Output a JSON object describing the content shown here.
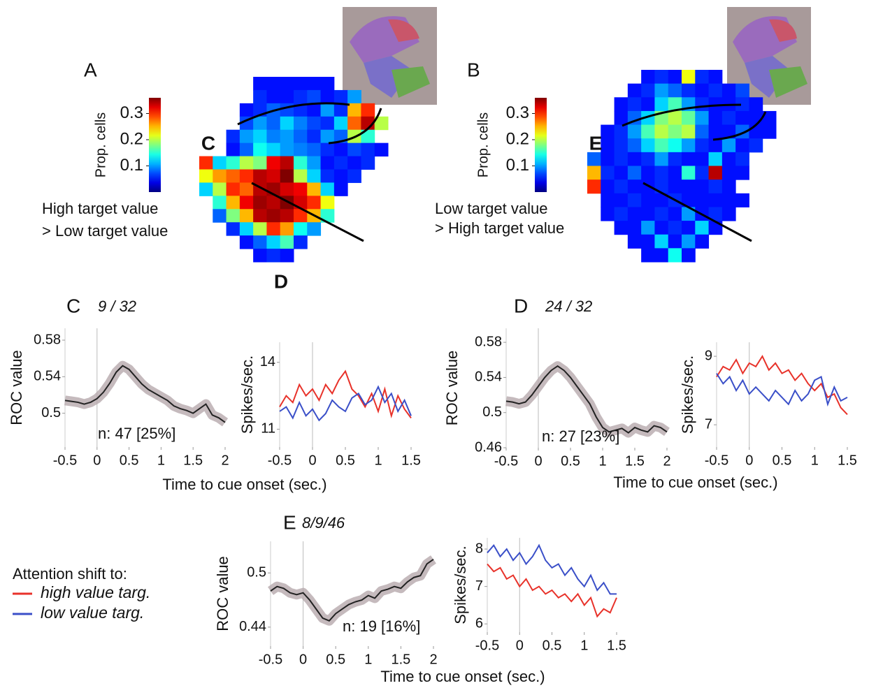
{
  "chart_data": [
    {
      "type": "heatmap",
      "panel": "A",
      "colorbar_label": "Prop. cells",
      "clim": [
        0,
        0.36
      ],
      "cticks": [
        0.1,
        0.2,
        0.3
      ],
      "annotations": [
        "High target value",
        "> Low target value"
      ],
      "markers": [
        "C",
        "D"
      ],
      "values": [
        [
          null,
          null,
          null,
          null,
          0.05,
          0.05,
          0.05,
          0.05,
          0.05,
          0.05,
          null,
          null,
          null,
          null
        ],
        [
          null,
          null,
          null,
          null,
          0.06,
          0.05,
          0.05,
          0.06,
          0.07,
          0.05,
          0.06,
          0.1,
          null,
          null
        ],
        [
          null,
          null,
          null,
          0.05,
          0.06,
          0.08,
          0.07,
          0.06,
          0.05,
          0.1,
          0.06,
          0.25,
          0.3,
          null
        ],
        [
          null,
          null,
          null,
          0.07,
          0.1,
          0.08,
          0.12,
          0.09,
          0.07,
          0.06,
          0.12,
          0.28,
          0.34,
          0.2
        ],
        [
          null,
          null,
          0.06,
          0.1,
          0.12,
          0.09,
          0.1,
          0.08,
          0.06,
          0.1,
          0.08,
          0.2,
          0.15,
          null
        ],
        [
          null,
          null,
          0.05,
          0.08,
          0.14,
          0.12,
          0.1,
          0.09,
          0.08,
          0.06,
          0.05,
          0.07,
          0.06,
          0.05
        ],
        [
          0.3,
          0.12,
          0.15,
          0.2,
          0.18,
          0.32,
          0.34,
          0.15,
          0.1,
          0.05,
          0.06,
          0.05,
          0.06,
          null
        ],
        [
          0.22,
          0.26,
          0.28,
          0.3,
          0.34,
          0.33,
          0.36,
          0.2,
          0.12,
          0.06,
          0.05,
          0.06,
          null,
          null
        ],
        [
          0.12,
          0.2,
          0.3,
          0.28,
          0.34,
          0.35,
          0.33,
          0.32,
          0.25,
          0.12,
          0.05,
          null,
          null,
          null
        ],
        [
          null,
          0.15,
          0.25,
          0.32,
          0.35,
          0.34,
          0.36,
          0.33,
          0.3,
          0.22,
          null,
          null,
          null,
          null
        ],
        [
          null,
          0.08,
          0.18,
          0.25,
          0.34,
          0.35,
          0.34,
          0.3,
          0.25,
          0.15,
          null,
          null,
          null,
          null
        ],
        [
          null,
          null,
          0.06,
          0.12,
          0.2,
          0.3,
          0.26,
          0.14,
          0.1,
          null,
          null,
          null,
          null,
          null
        ],
        [
          null,
          null,
          null,
          0.05,
          0.08,
          0.12,
          0.16,
          0.06,
          null,
          null,
          null,
          null,
          null,
          null
        ],
        [
          null,
          null,
          null,
          null,
          0.05,
          0.06,
          0.05,
          null,
          null,
          null,
          null,
          null,
          null,
          null
        ]
      ]
    },
    {
      "type": "heatmap",
      "panel": "B",
      "colorbar_label": "Prop. cells",
      "clim": [
        0,
        0.36
      ],
      "cticks": [
        0.1,
        0.2,
        0.3
      ],
      "annotations": [
        "Low target value",
        "> High target value"
      ],
      "markers": [
        "E"
      ],
      "values": [
        [
          null,
          null,
          null,
          null,
          0.05,
          0.06,
          0.05,
          0.22,
          0.06,
          0.05,
          null,
          null,
          null,
          null
        ],
        [
          null,
          null,
          null,
          0.05,
          0.06,
          0.1,
          0.08,
          0.06,
          0.05,
          0.06,
          0.05,
          0.07,
          null,
          null
        ],
        [
          null,
          null,
          0.05,
          0.06,
          0.05,
          0.12,
          0.16,
          0.1,
          0.06,
          0.05,
          0.05,
          0.06,
          0.05,
          null
        ],
        [
          null,
          null,
          0.05,
          0.08,
          0.12,
          0.18,
          0.2,
          0.17,
          0.1,
          0.05,
          0.06,
          0.05,
          0.05,
          0.05
        ],
        [
          null,
          0.05,
          0.06,
          0.1,
          0.16,
          0.2,
          0.18,
          0.2,
          0.08,
          0.05,
          0.05,
          0.08,
          0.05,
          0.05
        ],
        [
          null,
          0.05,
          0.06,
          0.08,
          0.12,
          0.16,
          0.14,
          0.1,
          0.06,
          0.05,
          0.1,
          0.05,
          0.06,
          null
        ],
        [
          0.08,
          0.05,
          0.06,
          0.05,
          0.06,
          0.1,
          0.06,
          0.05,
          0.05,
          0.12,
          0.05,
          0.06,
          null,
          null
        ],
        [
          0.25,
          0.06,
          0.05,
          0.08,
          0.05,
          0.06,
          0.05,
          0.15,
          0.06,
          0.34,
          0.05,
          0.05,
          null,
          null
        ],
        [
          0.3,
          0.05,
          0.06,
          0.05,
          0.05,
          0.06,
          0.05,
          0.05,
          0.05,
          0.06,
          0.05,
          null,
          null,
          null
        ],
        [
          null,
          0.05,
          0.05,
          0.06,
          0.05,
          0.05,
          0.06,
          0.05,
          0.05,
          0.05,
          0.05,
          0.05,
          null,
          null
        ],
        [
          null,
          0.05,
          0.06,
          0.05,
          0.05,
          0.06,
          0.05,
          0.1,
          0.05,
          0.06,
          0.05,
          null,
          null,
          null
        ],
        [
          null,
          null,
          0.05,
          0.05,
          0.1,
          0.05,
          0.06,
          0.05,
          0.12,
          0.05,
          null,
          null,
          null,
          null
        ],
        [
          null,
          null,
          null,
          0.05,
          0.05,
          0.12,
          0.05,
          0.1,
          0.05,
          null,
          null,
          null,
          null,
          null
        ],
        [
          null,
          null,
          null,
          null,
          0.05,
          0.05,
          0.14,
          0.05,
          null,
          null,
          null,
          null,
          null,
          null
        ]
      ]
    },
    {
      "type": "line",
      "panel": "C",
      "title": "9 / 32",
      "ylabel": "ROC value",
      "xlabel": "Time to cue onset (sec.)",
      "annotation": "n: 47 [25%]",
      "xlim": [
        -0.5,
        2
      ],
      "ylim": [
        0.463,
        0.593
      ],
      "xticks": [
        -0.5,
        0,
        0.5,
        1,
        1.5,
        2
      ],
      "yticks": [
        0.5,
        0.54,
        0.58
      ],
      "x": [
        -0.5,
        -0.4,
        -0.3,
        -0.2,
        -0.1,
        0,
        0.1,
        0.2,
        0.3,
        0.4,
        0.5,
        0.6,
        0.7,
        0.8,
        0.9,
        1.0,
        1.1,
        1.2,
        1.3,
        1.4,
        1.5,
        1.6,
        1.7,
        1.8,
        1.9,
        2.0
      ],
      "series": [
        {
          "color": "#222222",
          "values": [
            0.514,
            0.513,
            0.512,
            0.51,
            0.512,
            0.516,
            0.523,
            0.533,
            0.545,
            0.552,
            0.548,
            0.54,
            0.532,
            0.526,
            0.522,
            0.518,
            0.514,
            0.508,
            0.505,
            0.503,
            0.5,
            0.505,
            0.51,
            0.498,
            0.495,
            0.49
          ]
        }
      ]
    },
    {
      "type": "line",
      "ylabel": "Spikes/sec.",
      "legend_title": "Attention shift to:",
      "xlim": [
        -0.5,
        1.5
      ],
      "ylim": [
        10.2,
        14.9
      ],
      "xticks": [
        -0.5,
        0,
        0.5,
        1,
        1.5
      ],
      "yticks": [
        11,
        14
      ],
      "x": [
        -0.5,
        -0.4,
        -0.3,
        -0.2,
        -0.1,
        0,
        0.1,
        0.2,
        0.3,
        0.4,
        0.5,
        0.6,
        0.7,
        0.8,
        0.9,
        1.0,
        1.1,
        1.2,
        1.3,
        1.4,
        1.5
      ],
      "series": [
        {
          "name": "high value targ.",
          "color": "#e8322a",
          "values": [
            12,
            12.5,
            12.2,
            13,
            12.5,
            12.8,
            12.3,
            13,
            12.6,
            13.2,
            13.6,
            12.8,
            12.5,
            12,
            12.6,
            11.8,
            12.8,
            11.6,
            12.5,
            11.9,
            11.5
          ]
        },
        {
          "name": "low value targ.",
          "color": "#3a4fc8",
          "values": [
            11.8,
            12,
            11.5,
            12.2,
            11.6,
            11.9,
            11.4,
            11.7,
            12.3,
            12,
            11.8,
            12.4,
            12.6,
            12.1,
            12.3,
            12.9,
            12.2,
            12.6,
            11.8,
            12.3,
            11.6
          ]
        }
      ]
    },
    {
      "type": "line",
      "panel": "D",
      "title": "24 / 32",
      "ylabel": "ROC value",
      "xlabel": "Time to cue onset (sec.)",
      "annotation": "n: 27 [23%]",
      "xlim": [
        -0.5,
        2
      ],
      "ylim": [
        0.46,
        0.596
      ],
      "xticks": [
        -0.5,
        0,
        0.5,
        1,
        1.5,
        2
      ],
      "yticks": [
        0.46,
        0.5,
        0.54,
        0.58
      ],
      "x": [
        -0.5,
        -0.4,
        -0.3,
        -0.2,
        -0.1,
        0,
        0.1,
        0.2,
        0.3,
        0.4,
        0.5,
        0.6,
        0.7,
        0.8,
        0.9,
        1.0,
        1.1,
        1.2,
        1.3,
        1.4,
        1.5,
        1.6,
        1.7,
        1.8,
        1.9,
        2.0
      ],
      "series": [
        {
          "color": "#222222",
          "values": [
            0.513,
            0.512,
            0.51,
            0.512,
            0.52,
            0.53,
            0.54,
            0.548,
            0.553,
            0.548,
            0.54,
            0.53,
            0.52,
            0.51,
            0.495,
            0.483,
            0.478,
            0.48,
            0.482,
            0.477,
            0.483,
            0.48,
            0.478,
            0.485,
            0.483,
            0.478
          ]
        }
      ]
    },
    {
      "type": "line",
      "ylabel": "Spikes/sec.",
      "xlim": [
        -0.5,
        1.5
      ],
      "ylim": [
        6.35,
        9.41
      ],
      "xticks": [
        -0.5,
        0,
        0.5,
        1,
        1.5
      ],
      "yticks": [
        7,
        9
      ],
      "x": [
        -0.5,
        -0.4,
        -0.3,
        -0.2,
        -0.1,
        0,
        0.1,
        0.2,
        0.3,
        0.4,
        0.5,
        0.6,
        0.7,
        0.8,
        0.9,
        1.0,
        1.1,
        1.2,
        1.3,
        1.4,
        1.5
      ],
      "series": [
        {
          "color": "#e8322a",
          "values": [
            8.4,
            8.7,
            8.6,
            8.9,
            8.5,
            8.8,
            8.7,
            9.0,
            8.6,
            8.8,
            8.5,
            8.6,
            8.3,
            8.5,
            8.2,
            8.0,
            8.2,
            7.8,
            7.9,
            7.5,
            7.3
          ]
        },
        {
          "color": "#3a4fc8",
          "values": [
            8.5,
            8.2,
            8.4,
            8.0,
            8.3,
            7.9,
            8.1,
            7.9,
            7.7,
            8.0,
            7.8,
            7.6,
            8.0,
            7.7,
            7.9,
            8.3,
            8.4,
            7.6,
            8.1,
            7.7,
            7.8
          ]
        }
      ]
    },
    {
      "type": "line",
      "panel": "E",
      "title": "8/9/46",
      "ylabel": "ROC value",
      "xlabel": "Time to cue onset (sec.)",
      "annotation": "n: 19 [16%]",
      "xlim": [
        -0.5,
        2
      ],
      "ylim": [
        0.419,
        0.535
      ],
      "xticks": [
        -0.5,
        0,
        0.5,
        1,
        1.5,
        2
      ],
      "yticks": [
        0.44,
        0.5
      ],
      "x": [
        -0.5,
        -0.4,
        -0.3,
        -0.2,
        -0.1,
        0,
        0.1,
        0.2,
        0.3,
        0.4,
        0.5,
        0.6,
        0.7,
        0.8,
        0.9,
        1.0,
        1.1,
        1.2,
        1.3,
        1.4,
        1.5,
        1.6,
        1.7,
        1.8,
        1.9,
        2.0
      ],
      "series": [
        {
          "color": "#222222",
          "values": [
            0.48,
            0.485,
            0.483,
            0.478,
            0.476,
            0.478,
            0.47,
            0.46,
            0.45,
            0.447,
            0.455,
            0.46,
            0.465,
            0.468,
            0.47,
            0.475,
            0.472,
            0.48,
            0.482,
            0.485,
            0.483,
            0.49,
            0.495,
            0.497,
            0.51,
            0.515
          ]
        }
      ]
    },
    {
      "type": "line",
      "ylabel": "Spikes/sec.",
      "xlim": [
        -0.5,
        1.5
      ],
      "ylim": [
        5.78,
        8.3
      ],
      "xticks": [
        -0.5,
        0,
        0.5,
        1,
        1.5
      ],
      "yticks": [
        6,
        7,
        8
      ],
      "x": [
        -0.5,
        -0.4,
        -0.3,
        -0.2,
        -0.1,
        0,
        0.1,
        0.2,
        0.3,
        0.4,
        0.5,
        0.6,
        0.7,
        0.8,
        0.9,
        1.0,
        1.1,
        1.2,
        1.3,
        1.4,
        1.5
      ],
      "series": [
        {
          "color": "#e8322a",
          "values": [
            7.6,
            7.4,
            7.5,
            7.2,
            7.3,
            7.0,
            7.2,
            6.9,
            7.0,
            6.8,
            6.9,
            6.7,
            6.8,
            6.6,
            6.8,
            6.5,
            6.7,
            6.2,
            6.4,
            6.3,
            6.7
          ]
        },
        {
          "color": "#3a4fc8",
          "values": [
            7.9,
            8.1,
            7.8,
            8.0,
            7.7,
            7.9,
            7.6,
            7.8,
            8.1,
            7.7,
            7.5,
            7.6,
            7.3,
            7.5,
            7.2,
            7.0,
            7.3,
            6.9,
            7.1,
            6.8,
            6.8
          ]
        }
      ]
    }
  ]
}
